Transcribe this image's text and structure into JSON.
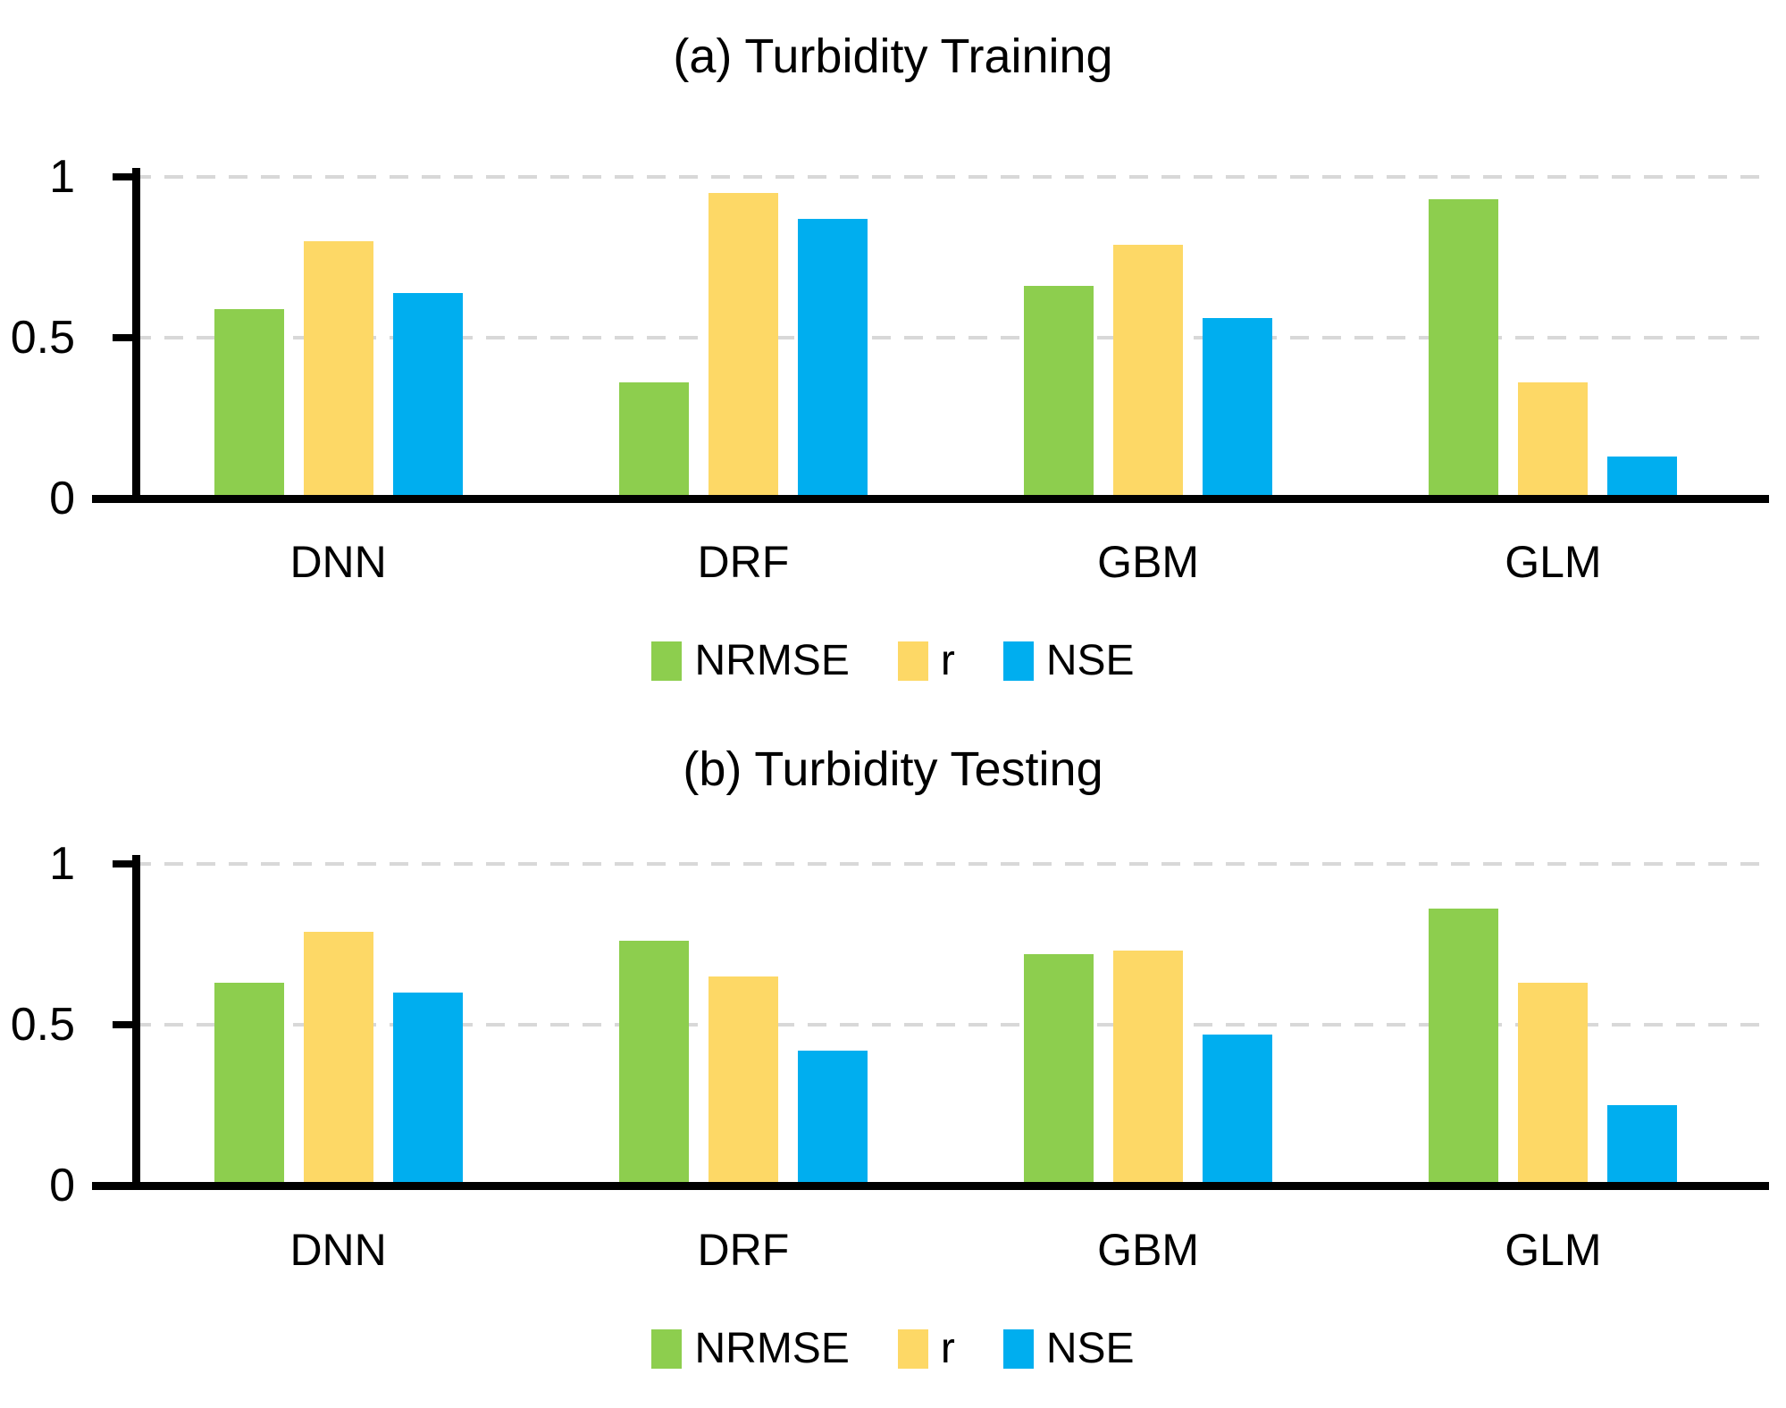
{
  "chart_data": [
    {
      "type": "bar",
      "title": "(a) Turbidity Training",
      "categories": [
        "DNN",
        "DRF",
        "GBM",
        "GLM"
      ],
      "series": [
        {
          "name": "NRMSE",
          "color": "#8DCE4E",
          "values": [
            0.59,
            0.36,
            0.66,
            0.93
          ]
        },
        {
          "name": "r",
          "color": "#FDD866",
          "values": [
            0.8,
            0.95,
            0.79,
            0.36
          ]
        },
        {
          "name": "NSE",
          "color": "#00AEEF",
          "values": [
            0.64,
            0.87,
            0.56,
            0.13
          ]
        }
      ],
      "xlabel": "",
      "ylabel": "",
      "ylim": [
        0,
        1
      ],
      "yticks": [
        "1",
        "0.5",
        "0"
      ],
      "grid": "horizontal dashed at 0.5 and 1.0",
      "legend_position": "bottom"
    },
    {
      "type": "bar",
      "title": "(b) Turbidity Testing",
      "categories": [
        "DNN",
        "DRF",
        "GBM",
        "GLM"
      ],
      "series": [
        {
          "name": "NRMSE",
          "color": "#8DCE4E",
          "values": [
            0.63,
            0.76,
            0.72,
            0.86
          ]
        },
        {
          "name": "r",
          "color": "#FDD866",
          "values": [
            0.79,
            0.65,
            0.73,
            0.63
          ]
        },
        {
          "name": "NSE",
          "color": "#00AEEF",
          "values": [
            0.6,
            0.42,
            0.47,
            0.25
          ]
        }
      ],
      "xlabel": "",
      "ylabel": "",
      "ylim": [
        0,
        1
      ],
      "yticks": [
        "1",
        "0.5",
        "0"
      ],
      "grid": "horizontal dashed at 0.5 and 1.0",
      "legend_position": "bottom"
    }
  ],
  "colors": {
    "axis": "#000000",
    "gridline": "#D8D8D8",
    "background": "#FFFFFF"
  }
}
